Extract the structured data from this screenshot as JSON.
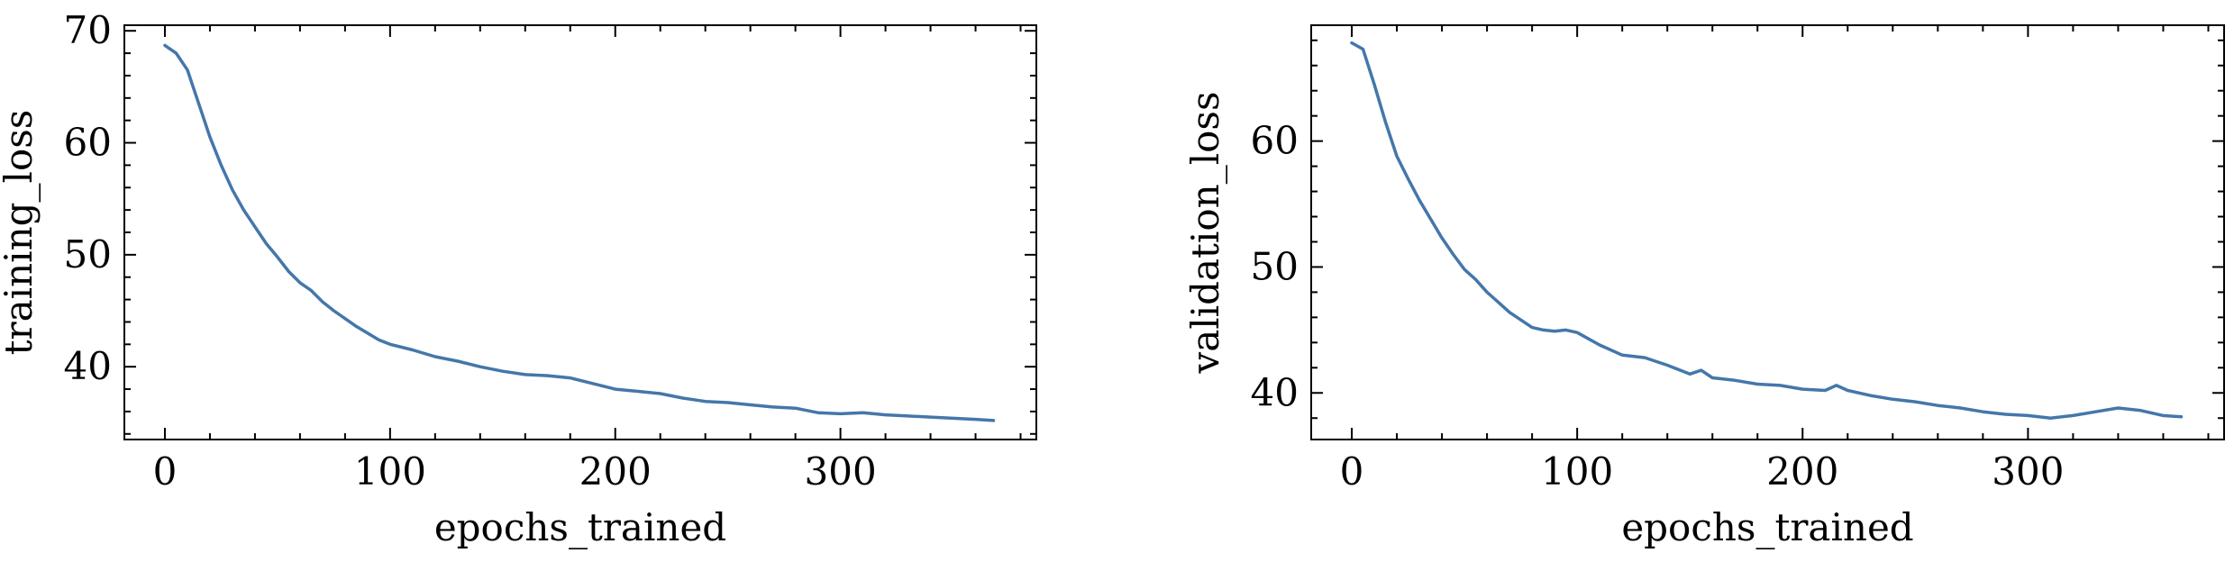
{
  "chart_data": [
    {
      "type": "line",
      "title": "",
      "xlabel": "epochs_trained",
      "ylabel": "training_loss",
      "xlim": [
        -18,
        387
      ],
      "ylim": [
        33.5,
        70.5
      ],
      "x_ticks": [
        0,
        100,
        200,
        300
      ],
      "x_tick_labels": [
        "0",
        "100",
        "200",
        "300"
      ],
      "x_minor_step": 20,
      "y_ticks": [
        40,
        50,
        60,
        70
      ],
      "y_tick_labels": [
        "40",
        "50",
        "60",
        "70"
      ],
      "y_minor_step": 2,
      "grid": false,
      "color": "#4477aa",
      "series": [
        {
          "x": [
            0,
            5,
            10,
            15,
            20,
            25,
            30,
            35,
            40,
            45,
            50,
            55,
            60,
            65,
            70,
            75,
            80,
            85,
            90,
            95,
            100,
            110,
            120,
            130,
            140,
            150,
            160,
            170,
            180,
            190,
            200,
            210,
            220,
            230,
            240,
            250,
            260,
            270,
            280,
            290,
            300,
            310,
            320,
            330,
            340,
            350,
            360,
            368
          ],
          "y": [
            68.7,
            68.0,
            66.5,
            63.5,
            60.5,
            58.0,
            55.8,
            54.0,
            52.5,
            51.0,
            49.8,
            48.5,
            47.5,
            46.8,
            45.8,
            45.0,
            44.3,
            43.6,
            43.0,
            42.4,
            42.0,
            41.5,
            40.9,
            40.5,
            40.0,
            39.6,
            39.3,
            39.2,
            39.0,
            38.5,
            38.0,
            37.8,
            37.6,
            37.2,
            36.9,
            36.8,
            36.6,
            36.4,
            36.3,
            35.9,
            35.8,
            35.9,
            35.7,
            35.6,
            35.5,
            35.4,
            35.3,
            35.2
          ]
        }
      ]
    },
    {
      "type": "line",
      "title": "",
      "xlabel": "epochs_trained",
      "ylabel": "validation_loss",
      "xlim": [
        -18,
        387
      ],
      "ylim": [
        36.3,
        69.2
      ],
      "x_ticks": [
        0,
        100,
        200,
        300
      ],
      "x_tick_labels": [
        "0",
        "100",
        "200",
        "300"
      ],
      "x_minor_step": 20,
      "y_ticks": [
        40,
        50,
        60
      ],
      "y_tick_labels": [
        "40",
        "50",
        "60"
      ],
      "y_minor_step": 2,
      "grid": false,
      "color": "#4477aa",
      "series": [
        {
          "x": [
            0,
            5,
            10,
            15,
            20,
            25,
            30,
            35,
            40,
            45,
            50,
            55,
            60,
            65,
            70,
            75,
            80,
            85,
            90,
            95,
            100,
            110,
            120,
            130,
            140,
            150,
            155,
            160,
            170,
            180,
            190,
            200,
            210,
            215,
            220,
            230,
            240,
            250,
            260,
            270,
            280,
            290,
            300,
            310,
            320,
            330,
            340,
            350,
            360,
            368
          ],
          "y": [
            67.8,
            67.3,
            64.5,
            61.5,
            58.8,
            57.0,
            55.3,
            53.8,
            52.3,
            51.0,
            49.8,
            49.0,
            48.0,
            47.2,
            46.4,
            45.8,
            45.2,
            45.0,
            44.9,
            45.0,
            44.8,
            43.8,
            43.0,
            42.8,
            42.2,
            41.5,
            41.8,
            41.2,
            41.0,
            40.7,
            40.6,
            40.3,
            40.2,
            40.6,
            40.2,
            39.8,
            39.5,
            39.3,
            39.0,
            38.8,
            38.5,
            38.3,
            38.2,
            38.0,
            38.2,
            38.5,
            38.8,
            38.6,
            38.2,
            38.1
          ]
        }
      ]
    }
  ]
}
